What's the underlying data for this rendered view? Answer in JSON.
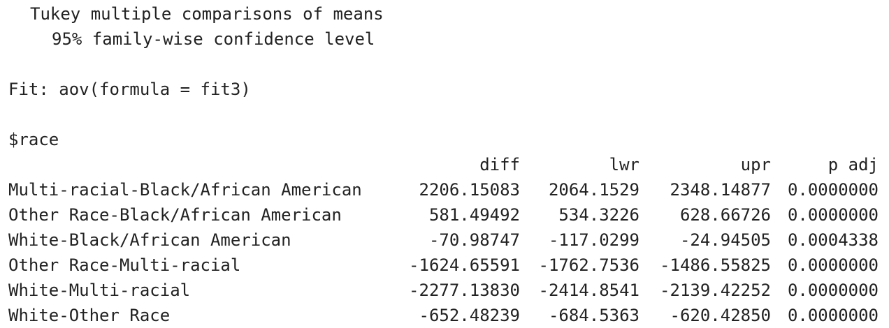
{
  "header": {
    "title": "Tukey multiple comparisons of means",
    "subtitle": "95% family-wise confidence level",
    "fit": "Fit: aov(formula = fit3)",
    "term": "$race"
  },
  "table": {
    "columns": [
      "diff",
      "lwr",
      "upr",
      "p adj"
    ],
    "rows": [
      {
        "label": "Multi-racial-Black/African American",
        "diff": "2206.15083",
        "lwr": "2064.1529",
        "upr": "2348.14877",
        "p": "0.0000000"
      },
      {
        "label": "Other Race-Black/African American",
        "diff": "581.49492",
        "lwr": "534.3226",
        "upr": "628.66726",
        "p": "0.0000000"
      },
      {
        "label": "White-Black/African American",
        "diff": "-70.98747",
        "lwr": "-117.0299",
        "upr": "-24.94505",
        "p": "0.0004338"
      },
      {
        "label": "Other Race-Multi-racial",
        "diff": "-1624.65591",
        "lwr": "-1762.7536",
        "upr": "-1486.55825",
        "p": "0.0000000"
      },
      {
        "label": "White-Multi-racial",
        "diff": "-2277.13830",
        "lwr": "-2414.8541",
        "upr": "-2139.42252",
        "p": "0.0000000"
      },
      {
        "label": "White-Other Race",
        "diff": "-652.48239",
        "lwr": "-684.5363",
        "upr": "-620.42850",
        "p": "0.0000000"
      }
    ]
  }
}
